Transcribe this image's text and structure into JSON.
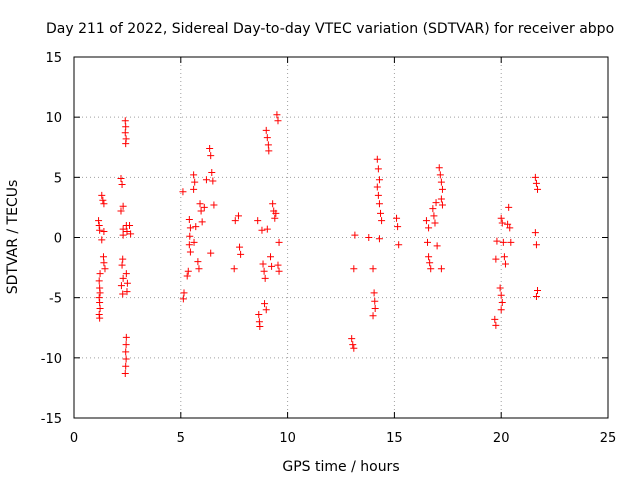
{
  "chart_data": {
    "type": "scatter",
    "title": "Day 211 of 2022, Sidereal Day-to-day VTEC variation (SDTVAR) for receiver abpo",
    "xlabel": "GPS time / hours",
    "ylabel": "SDTVAR / TECUs",
    "xlim": [
      0,
      25
    ],
    "ylim": [
      -15,
      15
    ],
    "xticks": [
      0,
      5,
      10,
      15,
      20,
      25
    ],
    "yticks": [
      -15,
      -10,
      -5,
      0,
      5,
      10,
      15
    ],
    "grid": true,
    "marker": "+",
    "marker_color": "#ff0000",
    "series": [
      {
        "name": "SDTVAR",
        "points": [
          [
            1.15,
            1.4
          ],
          [
            1.18,
            1.0
          ],
          [
            1.2,
            0.6
          ],
          [
            1.22,
            -3.0
          ],
          [
            1.18,
            -3.6
          ],
          [
            1.2,
            -4.2
          ],
          [
            1.22,
            -4.6
          ],
          [
            1.18,
            -5.0
          ],
          [
            1.2,
            -5.4
          ],
          [
            1.22,
            -5.9
          ],
          [
            1.18,
            -6.4
          ],
          [
            1.2,
            -6.7
          ],
          [
            1.3,
            3.5
          ],
          [
            1.35,
            3.1
          ],
          [
            1.4,
            2.8
          ],
          [
            1.4,
            0.5
          ],
          [
            1.38,
            -1.6
          ],
          [
            1.4,
            -2.1
          ],
          [
            1.45,
            -2.6
          ],
          [
            1.3,
            -0.2
          ],
          [
            2.2,
            4.9
          ],
          [
            2.25,
            4.4
          ],
          [
            2.3,
            2.6
          ],
          [
            2.2,
            2.2
          ],
          [
            2.3,
            0.7
          ],
          [
            2.28,
            -1.8
          ],
          [
            2.25,
            -2.3
          ],
          [
            2.3,
            -3.4
          ],
          [
            2.22,
            -4.0
          ],
          [
            2.28,
            -4.7
          ],
          [
            2.3,
            0.2
          ],
          [
            2.4,
            9.7
          ],
          [
            2.42,
            9.2
          ],
          [
            2.4,
            8.7
          ],
          [
            2.44,
            8.2
          ],
          [
            2.42,
            7.8
          ],
          [
            2.45,
            1.0
          ],
          [
            2.48,
            0.5
          ],
          [
            2.45,
            -3.0
          ],
          [
            2.5,
            -3.8
          ],
          [
            2.48,
            -4.5
          ],
          [
            2.45,
            -8.3
          ],
          [
            2.44,
            -8.9
          ],
          [
            2.42,
            -9.5
          ],
          [
            2.44,
            -10.1
          ],
          [
            2.42,
            -10.7
          ],
          [
            2.4,
            -11.3
          ],
          [
            2.6,
            1.0
          ],
          [
            2.65,
            0.3
          ],
          [
            5.1,
            3.8
          ],
          [
            5.15,
            -4.6
          ],
          [
            5.12,
            -5.1
          ],
          [
            5.3,
            -3.2
          ],
          [
            5.35,
            -2.8
          ],
          [
            5.4,
            1.5
          ],
          [
            5.45,
            0.8
          ],
          [
            5.42,
            0.1
          ],
          [
            5.4,
            -0.6
          ],
          [
            5.45,
            -1.2
          ],
          [
            5.6,
            5.2
          ],
          [
            5.65,
            4.6
          ],
          [
            5.62,
            -0.4
          ],
          [
            5.7,
            0.9
          ],
          [
            5.6,
            4.0
          ],
          [
            5.8,
            -2.0
          ],
          [
            5.85,
            -2.6
          ],
          [
            5.9,
            2.8
          ],
          [
            5.95,
            2.2
          ],
          [
            6.0,
            1.3
          ],
          [
            6.1,
            2.5
          ],
          [
            6.2,
            4.8
          ],
          [
            6.35,
            7.4
          ],
          [
            6.4,
            6.8
          ],
          [
            6.45,
            5.4
          ],
          [
            6.5,
            4.7
          ],
          [
            6.4,
            -1.3
          ],
          [
            6.55,
            2.7
          ],
          [
            7.5,
            -2.6
          ],
          [
            7.55,
            1.4
          ],
          [
            7.7,
            1.8
          ],
          [
            7.75,
            -0.8
          ],
          [
            7.8,
            -1.4
          ],
          [
            8.6,
            1.4
          ],
          [
            8.65,
            -6.4
          ],
          [
            8.68,
            -7.0
          ],
          [
            8.7,
            -7.4
          ],
          [
            8.8,
            0.6
          ],
          [
            8.85,
            -2.2
          ],
          [
            8.9,
            -2.8
          ],
          [
            8.95,
            -3.4
          ],
          [
            8.92,
            -5.5
          ],
          [
            9.0,
            -6.0
          ],
          [
            9.0,
            8.9
          ],
          [
            9.05,
            8.3
          ],
          [
            9.1,
            7.7
          ],
          [
            9.12,
            7.2
          ],
          [
            9.05,
            0.7
          ],
          [
            9.2,
            -1.6
          ],
          [
            9.25,
            -2.4
          ],
          [
            9.3,
            2.8
          ],
          [
            9.35,
            2.2
          ],
          [
            9.4,
            1.6
          ],
          [
            9.45,
            2.0
          ],
          [
            9.55,
            -2.3
          ],
          [
            9.6,
            -2.8
          ],
          [
            9.5,
            10.2
          ],
          [
            9.55,
            9.7
          ],
          [
            9.6,
            -0.4
          ],
          [
            13.0,
            -8.4
          ],
          [
            13.05,
            -8.9
          ],
          [
            13.1,
            -9.2
          ],
          [
            13.15,
            0.2
          ],
          [
            13.1,
            -2.6
          ],
          [
            13.8,
            0.0
          ],
          [
            14.0,
            -2.6
          ],
          [
            14.05,
            -4.6
          ],
          [
            14.08,
            -5.3
          ],
          [
            14.1,
            -5.9
          ],
          [
            14.0,
            -6.5
          ],
          [
            14.2,
            6.5
          ],
          [
            14.25,
            5.7
          ],
          [
            14.3,
            4.8
          ],
          [
            14.2,
            4.2
          ],
          [
            14.25,
            3.5
          ],
          [
            14.3,
            2.8
          ],
          [
            14.35,
            2.0
          ],
          [
            14.4,
            1.4
          ],
          [
            14.3,
            -0.1
          ],
          [
            15.1,
            1.6
          ],
          [
            15.15,
            0.9
          ],
          [
            15.2,
            -0.6
          ],
          [
            16.5,
            1.4
          ],
          [
            16.6,
            0.8
          ],
          [
            16.55,
            -0.4
          ],
          [
            16.6,
            -1.6
          ],
          [
            16.65,
            -2.1
          ],
          [
            16.7,
            -2.6
          ],
          [
            16.8,
            2.4
          ],
          [
            16.85,
            1.8
          ],
          [
            16.9,
            1.2
          ],
          [
            16.95,
            2.9
          ],
          [
            17.0,
            -0.7
          ],
          [
            17.1,
            5.8
          ],
          [
            17.15,
            5.2
          ],
          [
            17.2,
            4.6
          ],
          [
            17.25,
            4.0
          ],
          [
            17.2,
            3.2
          ],
          [
            17.25,
            2.7
          ],
          [
            17.2,
            -2.6
          ],
          [
            19.7,
            -6.8
          ],
          [
            19.75,
            -7.3
          ],
          [
            19.8,
            -0.3
          ],
          [
            19.75,
            -1.8
          ],
          [
            19.95,
            -4.2
          ],
          [
            20.0,
            -4.8
          ],
          [
            20.05,
            -5.4
          ],
          [
            20.0,
            -6.0
          ],
          [
            20.0,
            1.6
          ],
          [
            20.05,
            1.2
          ],
          [
            20.1,
            -0.4
          ],
          [
            20.15,
            -1.6
          ],
          [
            20.2,
            -2.2
          ],
          [
            20.3,
            1.1
          ],
          [
            20.4,
            0.8
          ],
          [
            20.35,
            2.5
          ],
          [
            20.45,
            -0.4
          ],
          [
            21.6,
            5.0
          ],
          [
            21.65,
            4.5
          ],
          [
            21.7,
            4.0
          ],
          [
            21.6,
            0.4
          ],
          [
            21.65,
            -0.6
          ],
          [
            21.7,
            -4.4
          ],
          [
            21.65,
            -4.9
          ]
        ]
      }
    ]
  }
}
